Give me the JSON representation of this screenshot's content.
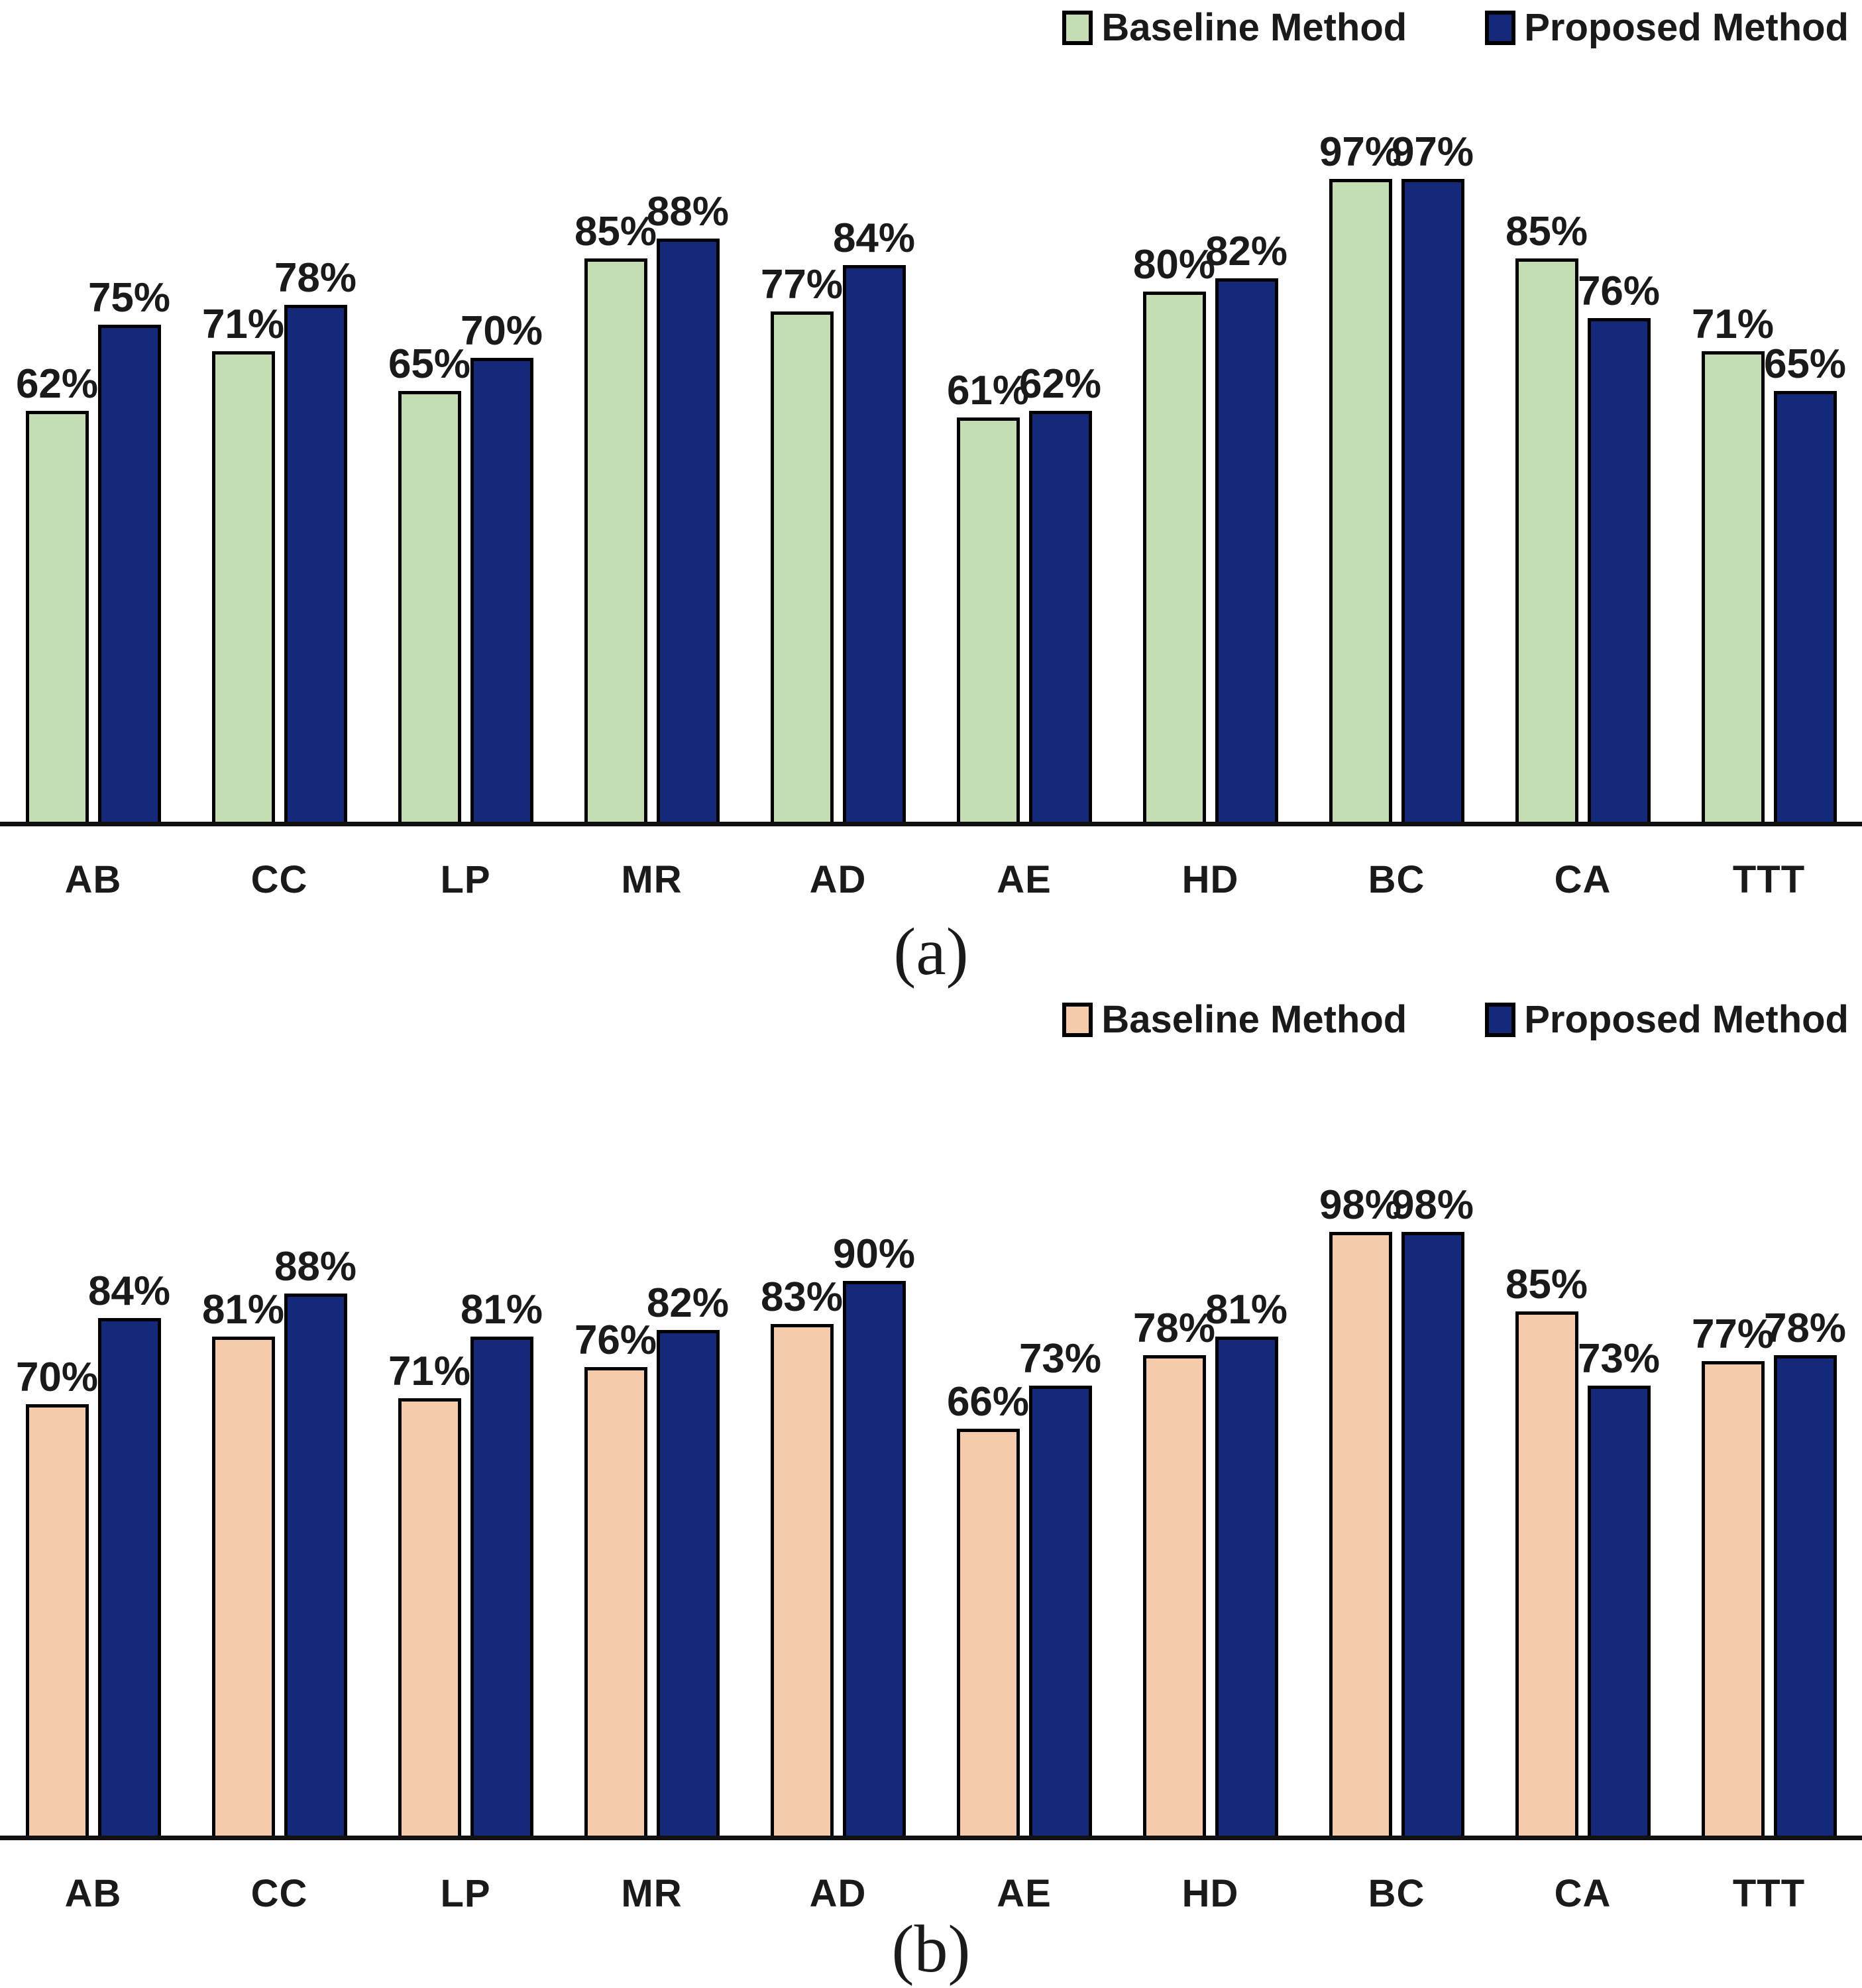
{
  "chart_data": [
    {
      "id": "a",
      "type": "bar",
      "caption": "(a)",
      "categories": [
        "AB",
        "CC",
        "LP",
        "MR",
        "AD",
        "AE",
        "HD",
        "BC",
        "CA",
        "TTT"
      ],
      "series": [
        {
          "name": "Baseline Method",
          "color": "#c5ddb2",
          "values": [
            62,
            71,
            65,
            85,
            77,
            61,
            80,
            97,
            85,
            71
          ]
        },
        {
          "name": "Proposed Method",
          "color": "#15297b",
          "values": [
            75,
            78,
            70,
            88,
            84,
            62,
            82,
            97,
            76,
            65
          ]
        }
      ],
      "value_suffix": "%",
      "ylim": [
        0,
        100
      ],
      "grid": false,
      "legend_position": "top-right",
      "value_labels": true
    },
    {
      "id": "b",
      "type": "bar",
      "caption": "(b)",
      "categories": [
        "AB",
        "CC",
        "LP",
        "MR",
        "AD",
        "AE",
        "HD",
        "BC",
        "CA",
        "TTT"
      ],
      "series": [
        {
          "name": "Baseline Method",
          "color": "#f6cbaa",
          "values": [
            70,
            81,
            71,
            76,
            83,
            66,
            78,
            98,
            85,
            77
          ]
        },
        {
          "name": "Proposed Method",
          "color": "#15297b",
          "values": [
            84,
            88,
            81,
            82,
            90,
            73,
            81,
            98,
            73,
            78
          ]
        }
      ],
      "value_suffix": "%",
      "ylim": [
        0,
        100
      ],
      "grid": false,
      "legend_position": "top-right",
      "value_labels": true
    }
  ]
}
